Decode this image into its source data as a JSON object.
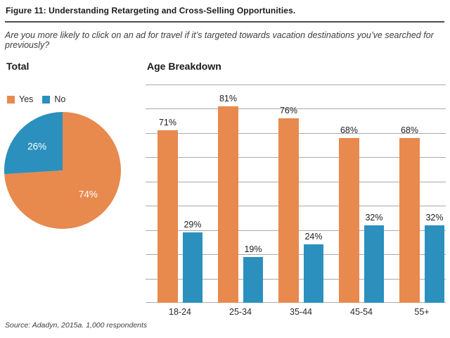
{
  "figure": {
    "title": "Figure 11: Understanding Retargeting and Cross-Selling Opportunities.",
    "subtitle": "Are you more likely to click on an ad for travel if it’s targeted towards vacation destinations you’ve searched for previously?",
    "source": "Source: Adadyn, 2015a. 1,000 respondents"
  },
  "colors": {
    "yes": "#E8894E",
    "no": "#2B90BD",
    "gridline": "#ABABAB",
    "text": "#1E1E1E"
  },
  "chart_data": [
    {
      "type": "pie",
      "title": "Total",
      "labels": [
        "Yes",
        "No"
      ],
      "values": [
        74,
        26
      ],
      "data_labels": [
        "74%",
        "26%"
      ],
      "colors": [
        "#E8894E",
        "#2B90BD"
      ],
      "legend_position": "top"
    },
    {
      "type": "bar",
      "title": "Age Breakdown",
      "categories": [
        "18-24",
        "25-34",
        "35-44",
        "45-54",
        "55+"
      ],
      "series": [
        {
          "name": "Yes",
          "values": [
            71,
            81,
            76,
            68,
            68
          ],
          "color": "#E8894E"
        },
        {
          "name": "No",
          "values": [
            29,
            19,
            24,
            32,
            32
          ],
          "color": "#2B90BD"
        }
      ],
      "data_labels": true,
      "data_label_format": "percent",
      "ylim": [
        0,
        90
      ],
      "gridline_interval": 10,
      "grid": true,
      "legend_position": "none"
    }
  ]
}
